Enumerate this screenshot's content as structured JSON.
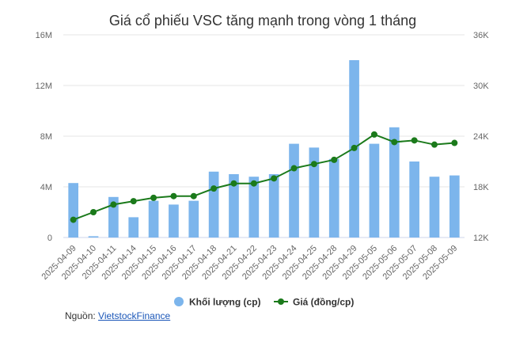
{
  "chart_data": {
    "type": "bar",
    "title": "Giá cổ phiếu VSC tăng mạnh trong vòng 1 tháng",
    "categories": [
      "2025-04-09",
      "2025-04-10",
      "2025-04-11",
      "2025-04-14",
      "2025-04-15",
      "2025-04-16",
      "2025-04-17",
      "2025-04-18",
      "2025-04-21",
      "2025-04-22",
      "2025-04-23",
      "2025-04-24",
      "2025-04-25",
      "2025-04-28",
      "2025-04-29",
      "2025-05-05",
      "2025-05-06",
      "2025-05-07",
      "2025-05-08",
      "2025-05-09"
    ],
    "series": [
      {
        "name": "Khối lượng (cp)",
        "type": "bar",
        "axis": "left",
        "color": "#7cb5ec",
        "values": [
          4300000,
          100000,
          3200000,
          1600000,
          2900000,
          2600000,
          2900000,
          5200000,
          5000000,
          4800000,
          5000000,
          7400000,
          7100000,
          6200000,
          14000000,
          7400000,
          8700000,
          6000000,
          4800000,
          4900000
        ]
      },
      {
        "name": "Giá (đồng/cp)",
        "type": "line",
        "axis": "right",
        "color": "#1b7a1b",
        "values": [
          14100,
          15000,
          15900,
          16300,
          16700,
          16900,
          16900,
          17800,
          18400,
          18400,
          19000,
          20200,
          20700,
          21200,
          22600,
          24200,
          23300,
          23500,
          23000,
          23200
        ]
      }
    ],
    "y_left": {
      "min": 0,
      "max": 16000000,
      "ticks": [
        0,
        4000000,
        8000000,
        12000000,
        16000000
      ],
      "tick_labels": [
        "0",
        "4M",
        "8M",
        "12M",
        "16M"
      ]
    },
    "y_right": {
      "min": 12000,
      "max": 36000,
      "ticks": [
        12000,
        18000,
        24000,
        30000,
        36000
      ],
      "tick_labels": [
        "12K",
        "18K",
        "24K",
        "30K",
        "36K"
      ]
    },
    "grid": true,
    "legend_position": "bottom-center"
  },
  "source": {
    "label": "Nguồn:",
    "link_text": "VietstockFinance"
  }
}
